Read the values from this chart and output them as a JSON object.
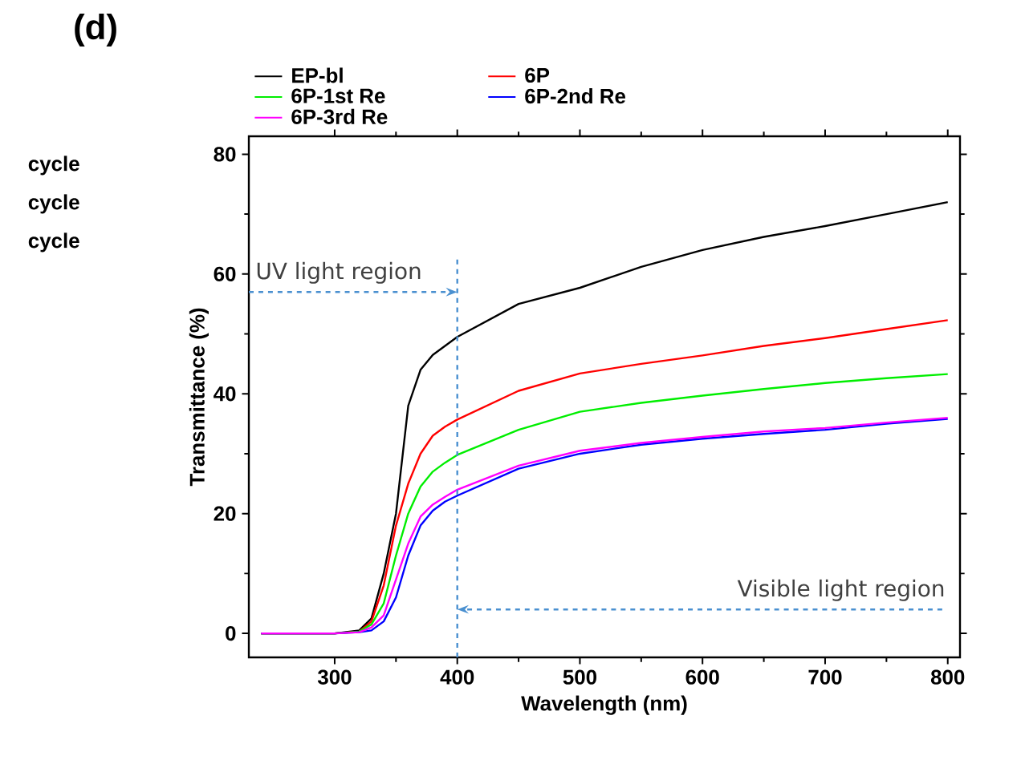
{
  "chart_data": {
    "type": "line",
    "title": "(d)",
    "xlabel": "Wavelength (nm)",
    "ylabel": "Transmittance (%)",
    "x": [
      240,
      300,
      320,
      330,
      340,
      350,
      360,
      370,
      380,
      390,
      400,
      450,
      500,
      550,
      600,
      650,
      700,
      750,
      800
    ],
    "series": [
      {
        "name": "EP-bl",
        "color": "#000000",
        "values": [
          0,
          0,
          0.5,
          2.5,
          10,
          20,
          38,
          44,
          46.5,
          48,
          49.5,
          55,
          57.7,
          61.2,
          64,
          66.2,
          68,
          70,
          72
        ]
      },
      {
        "name": "6P",
        "color": "#ff0000",
        "values": [
          0,
          0,
          0.3,
          2,
          8,
          18,
          25,
          30,
          33,
          34.5,
          35.7,
          40.5,
          43.4,
          45,
          46.4,
          48,
          49.3,
          50.8,
          52.3
        ]
      },
      {
        "name": "6P-1st Re",
        "color": "#00ee00",
        "values": [
          0,
          0,
          0.3,
          1.5,
          5,
          13,
          20,
          24.5,
          27,
          28.5,
          29.8,
          34,
          37,
          38.5,
          39.7,
          40.8,
          41.8,
          42.6,
          43.3
        ]
      },
      {
        "name": "6P-2nd Re",
        "color": "#0000ff",
        "values": [
          0,
          0,
          0.2,
          0.5,
          2,
          6,
          13,
          18,
          20.5,
          22,
          23,
          27.5,
          30,
          31.5,
          32.5,
          33.3,
          34,
          35,
          35.8
        ]
      },
      {
        "name": "6P-3rd Re",
        "color": "#ff00ff",
        "values": [
          0,
          0,
          0.2,
          1,
          3,
          9,
          15,
          19.5,
          21.5,
          22.8,
          24,
          28,
          30.5,
          31.8,
          32.8,
          33.7,
          34.3,
          35.2,
          36
        ]
      }
    ],
    "xlim": [
      230,
      810
    ],
    "ylim": [
      -4,
      83
    ],
    "xticks": [
      300,
      400,
      500,
      600,
      700,
      800
    ],
    "yticks": [
      0,
      20,
      40,
      60,
      80
    ],
    "ref_lines": [
      {
        "axis": "x",
        "value": 400,
        "color": "#4a90d0",
        "line_style": "dashed"
      }
    ],
    "annotations": [
      {
        "text": "UV light region",
        "x": 400,
        "y": 57
      },
      {
        "text": "Visible light region",
        "x": 400,
        "y": 4
      },
      "cycle",
      "cycle",
      "cycle"
    ],
    "legend": "top",
    "grid": false,
    "marker": "none",
    "line_style": "solid"
  }
}
